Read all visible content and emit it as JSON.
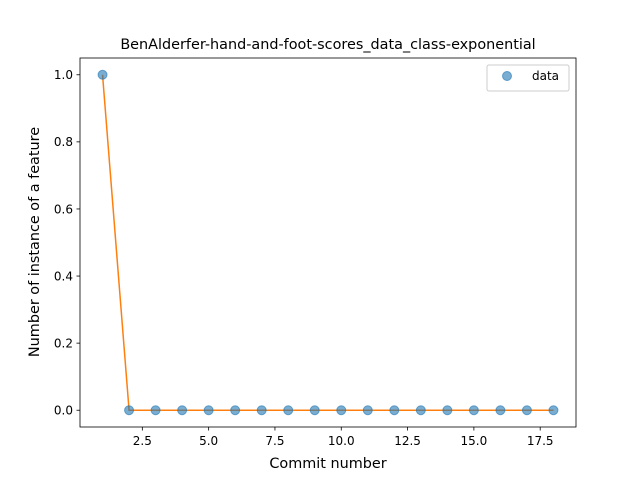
{
  "chart_data": {
    "type": "scatter",
    "title": "BenAlderfer-hand-and-foot-scores_data_class-exponential",
    "xlabel": "Commit number",
    "ylabel": "Number of instance of a feature",
    "xlim": [
      0.15,
      18.85
    ],
    "ylim": [
      -0.05,
      1.05
    ],
    "x_ticks": [
      2.5,
      5.0,
      7.5,
      10.0,
      12.5,
      15.0,
      17.5
    ],
    "x_tick_labels": [
      "2.5",
      "5.0",
      "7.5",
      "10.0",
      "12.5",
      "15.0",
      "17.5"
    ],
    "y_ticks": [
      0.0,
      0.2,
      0.4,
      0.6,
      0.8,
      1.0
    ],
    "y_tick_labels": [
      "0.0",
      "0.2",
      "0.4",
      "0.6",
      "0.8",
      "1.0"
    ],
    "grid": false,
    "legend_position": "top-right",
    "series": [
      {
        "name": "data",
        "kind": "scatter",
        "color": "#1f77b4",
        "x": [
          1,
          2,
          3,
          4,
          5,
          6,
          7,
          8,
          9,
          10,
          11,
          12,
          13,
          14,
          15,
          16,
          17,
          18
        ],
        "y": [
          1,
          0,
          0,
          0,
          0,
          0,
          0,
          0,
          0,
          0,
          0,
          0,
          0,
          0,
          0,
          0,
          0,
          0
        ]
      },
      {
        "kind": "line",
        "color": "#ff7f0e",
        "x": [
          1,
          2,
          3,
          4,
          5,
          6,
          7,
          8,
          9,
          10,
          11,
          12,
          13,
          14,
          15,
          16,
          17,
          18
        ],
        "y": [
          1,
          0,
          0,
          0,
          0,
          0,
          0,
          0,
          0,
          0,
          0,
          0,
          0,
          0,
          0,
          0,
          0,
          0
        ]
      }
    ]
  }
}
